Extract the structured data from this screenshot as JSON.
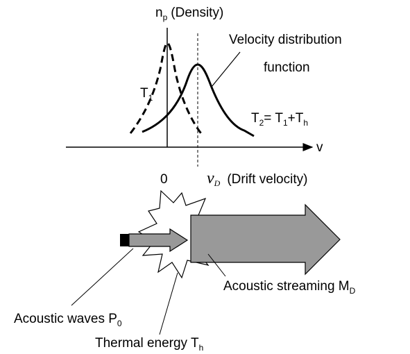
{
  "diagram": {
    "density_label": [
      "n",
      "p",
      "(Density)"
    ],
    "vdf_label": [
      "Velocity distribution",
      "function"
    ],
    "t1_label": [
      "T",
      "1"
    ],
    "t2_label": [
      "T",
      "2",
      "= T",
      "1",
      "+T",
      "h"
    ],
    "velocity_axis_label": "v",
    "origin_label": "0",
    "drift_label": [
      "v",
      "D",
      "(Drift velocity)"
    ],
    "streaming_label": [
      "Acoustic streaming M",
      "D"
    ],
    "waves_label": [
      "Acoustic waves P",
      "0"
    ],
    "thermal_label": [
      "Thermal energy T",
      "h"
    ]
  }
}
